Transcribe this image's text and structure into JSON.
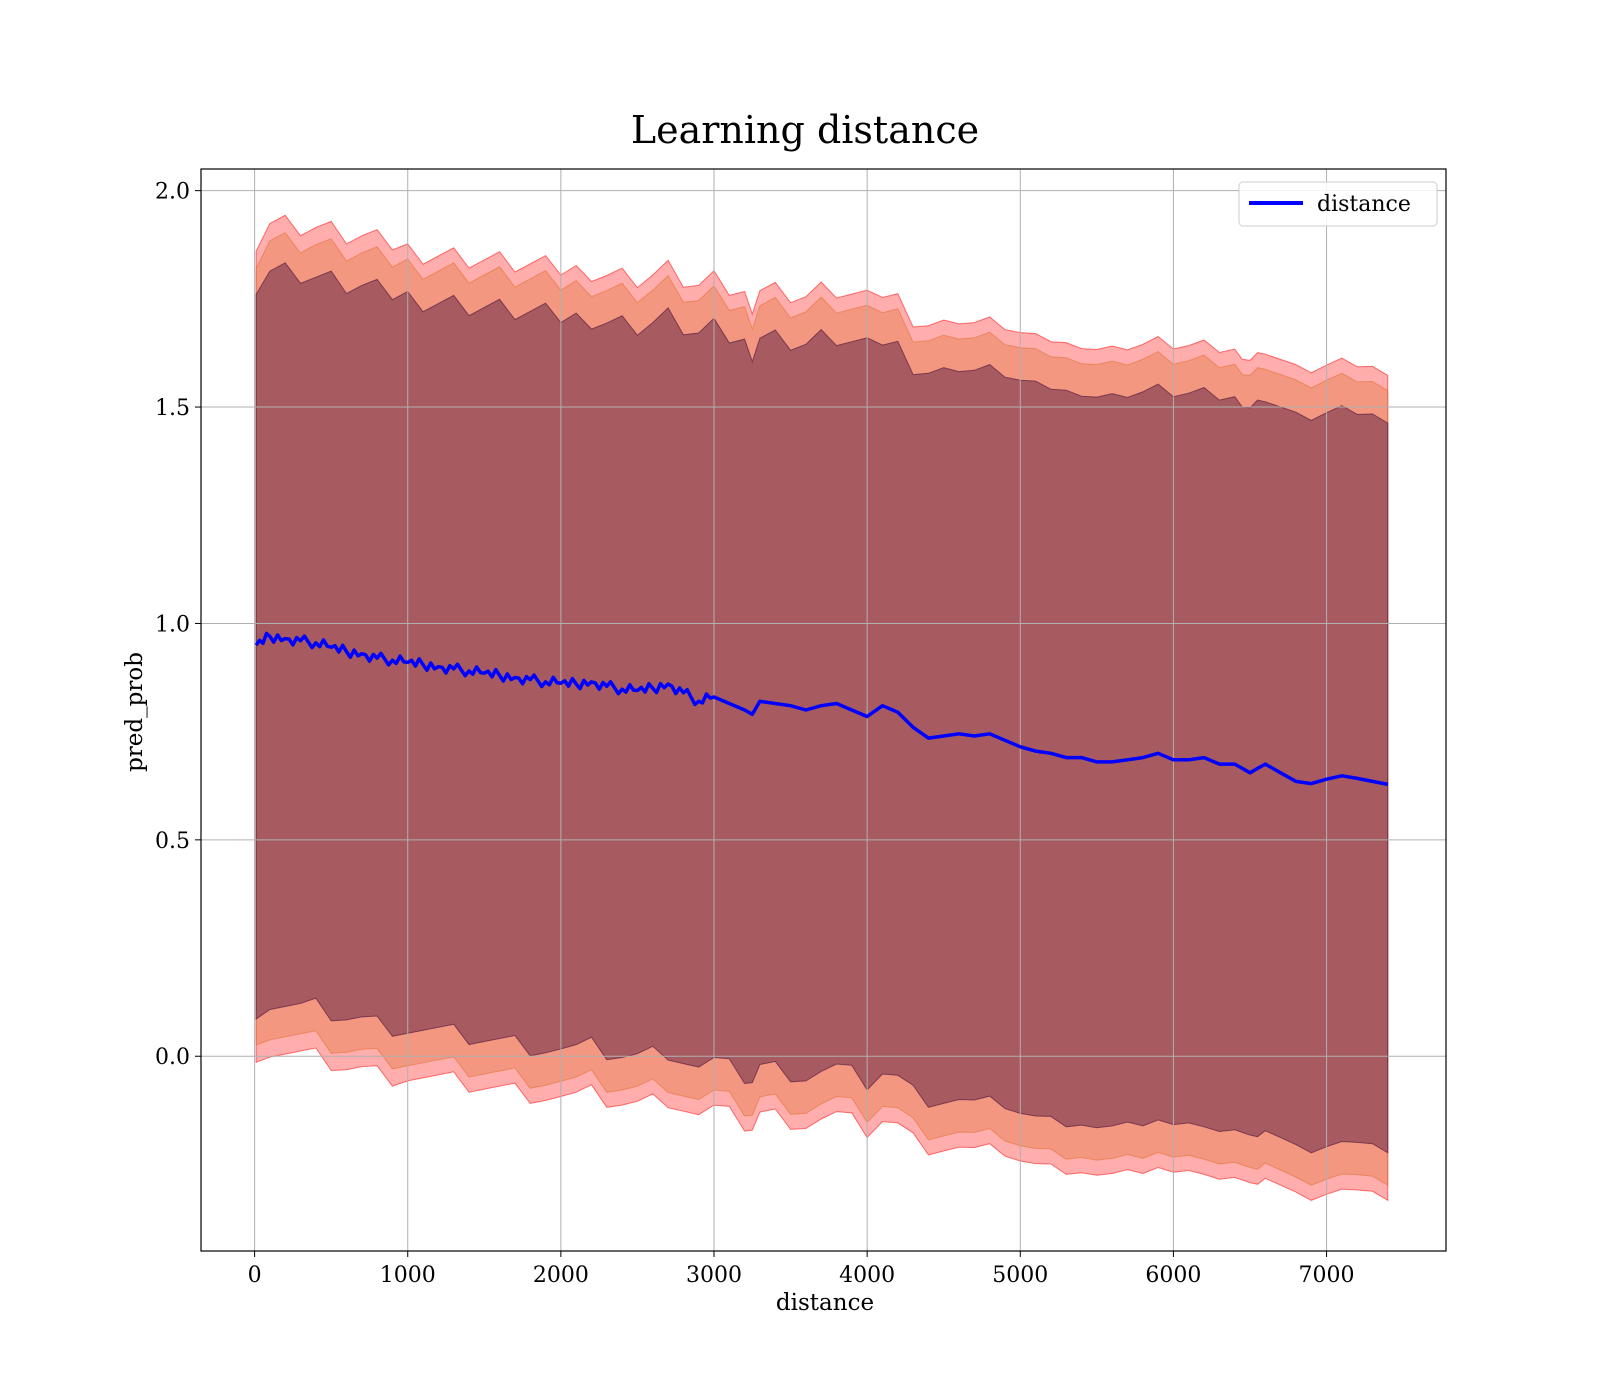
{
  "chart_data": {
    "type": "area",
    "title": "Learning distance",
    "xlabel": "distance",
    "ylabel": "pred_prob",
    "xlim": [
      -350,
      7780
    ],
    "ylim": [
      -0.45,
      2.05
    ],
    "xticks": [
      0,
      1000,
      2000,
      3000,
      4000,
      5000,
      6000,
      7000
    ],
    "yticks": [
      0.0,
      0.5,
      1.0,
      1.5,
      2.0
    ],
    "xtick_labels": [
      "0",
      "1000",
      "2000",
      "3000",
      "4000",
      "5000",
      "6000",
      "7000"
    ],
    "ytick_labels": [
      "0.0",
      "0.5",
      "1.0",
      "1.5",
      "2.0"
    ],
    "grid": true,
    "legend": {
      "placement": "top-right",
      "entries": [
        "distance"
      ]
    },
    "x": [
      10,
      100,
      200,
      300,
      400,
      500,
      600,
      700,
      800,
      900,
      1000,
      1100,
      1200,
      1300,
      1400,
      1500,
      1600,
      1700,
      1800,
      1900,
      2000,
      2100,
      2200,
      2300,
      2400,
      2500,
      2600,
      2700,
      2800,
      2900,
      3000,
      3100,
      3200,
      3250,
      3300,
      3400,
      3500,
      3600,
      3700,
      3800,
      3900,
      4000,
      4100,
      4200,
      4300,
      4400,
      4500,
      4600,
      4700,
      4800,
      4900,
      5000,
      5100,
      5200,
      5300,
      5400,
      5500,
      5600,
      5700,
      5800,
      5900,
      6000,
      6100,
      6200,
      6300,
      6400,
      6450,
      6500,
      6550,
      6600,
      6700,
      6800,
      6900,
      7000,
      7100,
      7200,
      7300,
      7400
    ],
    "series": [
      {
        "name": "distance",
        "color": "#0000ff",
        "values": [
          0.95,
          0.97,
          0.965,
          0.96,
          0.955,
          0.945,
          0.935,
          0.93,
          0.92,
          0.915,
          0.91,
          0.905,
          0.9,
          0.895,
          0.89,
          0.885,
          0.88,
          0.875,
          0.87,
          0.865,
          0.862,
          0.86,
          0.865,
          0.855,
          0.848,
          0.845,
          0.85,
          0.86,
          0.84,
          0.82,
          0.83,
          0.815,
          0.8,
          0.79,
          0.82,
          0.815,
          0.81,
          0.8,
          0.81,
          0.815,
          0.8,
          0.785,
          0.81,
          0.795,
          0.76,
          0.735,
          0.74,
          0.745,
          0.74,
          0.745,
          0.73,
          0.715,
          0.705,
          0.7,
          0.69,
          0.69,
          0.68,
          0.68,
          0.685,
          0.69,
          0.7,
          0.685,
          0.685,
          0.69,
          0.675,
          0.675,
          0.665,
          0.655,
          0.665,
          0.675,
          0.655,
          0.635,
          0.63,
          0.64,
          0.648,
          0.642,
          0.635,
          0.628
        ]
      }
    ],
    "bands": [
      {
        "name": "outer",
        "color": "#ff0000",
        "opacity": 0.32,
        "half_width": [
          0.94,
          0.96,
          0.96,
          0.96,
          0.96,
          0.96,
          0.96,
          0.96,
          0.96,
          0.96,
          0.955,
          0.955,
          0.955,
          0.955,
          0.955,
          0.955,
          0.955,
          0.955,
          0.955,
          0.955,
          0.955,
          0.955,
          0.955,
          0.955,
          0.955,
          0.955,
          0.955,
          0.955,
          0.955,
          0.955,
          0.955,
          0.955,
          0.955,
          0.955,
          0.955,
          0.955,
          0.955,
          0.955,
          0.955,
          0.955,
          0.955,
          0.955,
          0.955,
          0.955,
          0.955,
          0.955,
          0.955,
          0.955,
          0.955,
          0.955,
          0.955,
          0.955,
          0.955,
          0.955,
          0.955,
          0.955,
          0.955,
          0.955,
          0.955,
          0.955,
          0.955,
          0.955,
          0.955,
          0.955,
          0.955,
          0.955,
          0.955,
          0.955,
          0.955,
          0.955,
          0.955,
          0.955,
          0.955,
          0.955,
          0.955,
          0.955,
          0.955,
          0.955
        ]
      },
      {
        "name": "middle",
        "color": "#e07030",
        "opacity": 0.35,
        "half_width": [
          0.9,
          0.92,
          0.92,
          0.92,
          0.92,
          0.92,
          0.92,
          0.92,
          0.92,
          0.92,
          0.92,
          0.92,
          0.92,
          0.92,
          0.92,
          0.92,
          0.92,
          0.92,
          0.92,
          0.92,
          0.92,
          0.92,
          0.92,
          0.92,
          0.92,
          0.92,
          0.92,
          0.92,
          0.92,
          0.92,
          0.92,
          0.92,
          0.92,
          0.92,
          0.92,
          0.92,
          0.92,
          0.92,
          0.92,
          0.92,
          0.92,
          0.92,
          0.92,
          0.92,
          0.92,
          0.92,
          0.92,
          0.92,
          0.92,
          0.92,
          0.92,
          0.92,
          0.92,
          0.92,
          0.92,
          0.92,
          0.92,
          0.92,
          0.92,
          0.92,
          0.92,
          0.92,
          0.92,
          0.92,
          0.92,
          0.92,
          0.92,
          0.92,
          0.92,
          0.92,
          0.92,
          0.92,
          0.92,
          0.92,
          0.92,
          0.92,
          0.92,
          0.92
        ]
      },
      {
        "name": "inner",
        "color": "#5a2040",
        "opacity": 0.5,
        "half_width": [
          0.84,
          0.85,
          0.85,
          0.85,
          0.845,
          0.845,
          0.845,
          0.845,
          0.845,
          0.845,
          0.845,
          0.845,
          0.845,
          0.845,
          0.845,
          0.845,
          0.845,
          0.845,
          0.845,
          0.845,
          0.845,
          0.845,
          0.845,
          0.845,
          0.845,
          0.845,
          0.845,
          0.845,
          0.845,
          0.845,
          0.845,
          0.845,
          0.845,
          0.845,
          0.845,
          0.845,
          0.845,
          0.845,
          0.845,
          0.845,
          0.845,
          0.845,
          0.845,
          0.845,
          0.845,
          0.845,
          0.845,
          0.845,
          0.845,
          0.845,
          0.845,
          0.845,
          0.845,
          0.845,
          0.845,
          0.845,
          0.845,
          0.845,
          0.845,
          0.845,
          0.845,
          0.845,
          0.845,
          0.845,
          0.845,
          0.845,
          0.845,
          0.845,
          0.845,
          0.845,
          0.845,
          0.845,
          0.845,
          0.845,
          0.845,
          0.845,
          0.845,
          0.845
        ]
      }
    ]
  }
}
